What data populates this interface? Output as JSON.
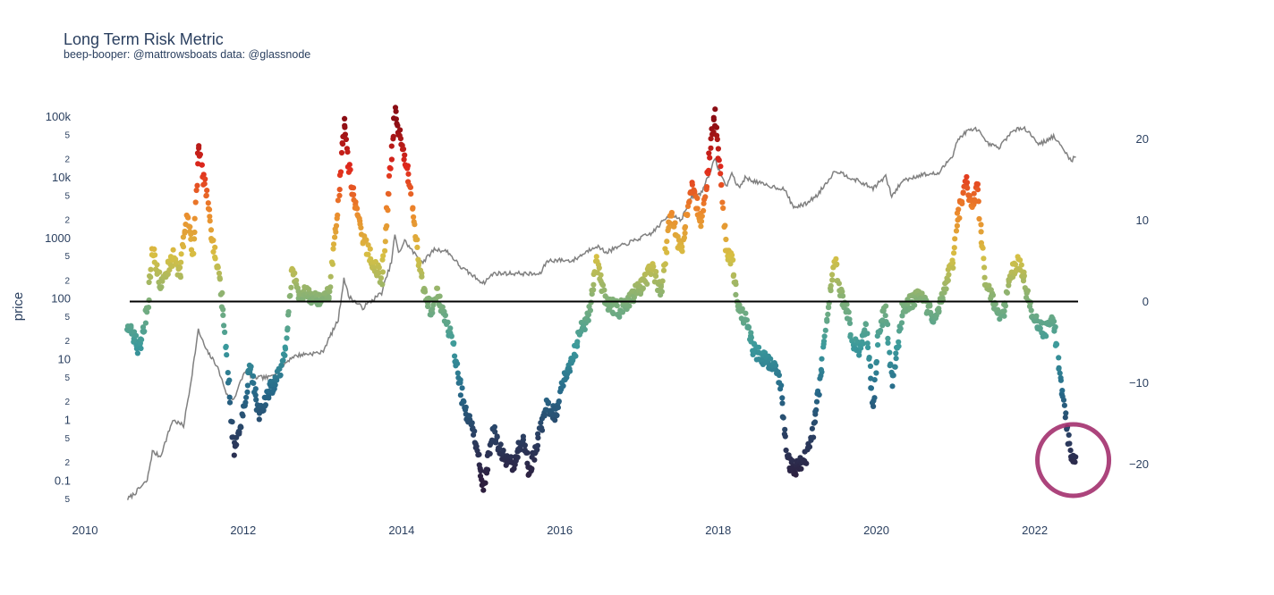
{
  "chart_data": {
    "type": "scatter",
    "title": "Long Term Risk Metric",
    "subtitle": "beep-booper: @mattrowsboats data: @glassnode",
    "ylabel": "price",
    "y_scale": "log",
    "ylim": [
      0.04,
      200000
    ],
    "y2lim": [
      -25,
      25
    ],
    "xlim": [
      "2010-01-01",
      "2023-01-01"
    ],
    "x_ticks": [
      "2010",
      "2012",
      "2014",
      "2016",
      "2018",
      "2020",
      "2022"
    ],
    "y_ticks_major": [
      "100k",
      "10k",
      "1000",
      "100",
      "10",
      "1",
      "0.1"
    ],
    "y_ticks_minor": [
      "5",
      "2"
    ],
    "y2_ticks": [
      "20",
      "10",
      "0",
      "−10",
      "−20"
    ],
    "y2_tick_values": [
      20,
      10,
      0,
      -10,
      -20
    ],
    "reference_line_y2": 0,
    "colorscale": [
      "#2d1e3e",
      "#2a3f62",
      "#276a8a",
      "#3b9a9c",
      "#7fb07a",
      "#d6c044",
      "#ec8a2c",
      "#e0281c",
      "#8b0d14"
    ],
    "highlight": {
      "x": "2022-06-15",
      "y2": -19.5,
      "color": "#a3306e"
    },
    "series": [
      {
        "kind": "line",
        "color": "#808080",
        "points": [
          [
            "2010-07-17",
            0.05
          ],
          [
            "2010-08-15",
            0.06
          ],
          [
            "2010-10-15",
            0.1
          ],
          [
            "2010-11-08",
            0.3
          ],
          [
            "2010-12-15",
            0.25
          ],
          [
            "2011-02-10",
            1.0
          ],
          [
            "2011-04-01",
            0.8
          ],
          [
            "2011-05-01",
            3.5
          ],
          [
            "2011-06-08",
            30
          ],
          [
            "2011-07-15",
            14
          ],
          [
            "2011-09-01",
            8
          ],
          [
            "2011-10-20",
            2.5
          ],
          [
            "2011-11-18",
            2.2
          ],
          [
            "2012-01-10",
            6.5
          ],
          [
            "2012-02-15",
            5
          ],
          [
            "2012-05-01",
            5
          ],
          [
            "2012-08-15",
            11
          ],
          [
            "2012-10-01",
            12
          ],
          [
            "2012-12-31",
            13
          ],
          [
            "2013-03-15",
            45
          ],
          [
            "2013-04-10",
            220
          ],
          [
            "2013-05-01",
            110
          ],
          [
            "2013-07-05",
            70
          ],
          [
            "2013-10-01",
            125
          ],
          [
            "2013-11-15",
            400
          ],
          [
            "2013-12-01",
            1150
          ],
          [
            "2013-12-18",
            550
          ],
          [
            "2014-01-15",
            900
          ],
          [
            "2014-03-01",
            550
          ],
          [
            "2014-04-10",
            400
          ],
          [
            "2014-06-01",
            650
          ],
          [
            "2014-08-01",
            600
          ],
          [
            "2014-10-01",
            330
          ],
          [
            "2015-01-14",
            180
          ],
          [
            "2015-03-01",
            260
          ],
          [
            "2015-07-01",
            260
          ],
          [
            "2015-10-01",
            250
          ],
          [
            "2015-11-04",
            420
          ],
          [
            "2015-12-31",
            430
          ],
          [
            "2016-03-01",
            420
          ],
          [
            "2016-06-16",
            750
          ],
          [
            "2016-08-01",
            580
          ],
          [
            "2016-12-31",
            970
          ],
          [
            "2017-03-01",
            1200
          ],
          [
            "2017-05-25",
            2500
          ],
          [
            "2017-07-15",
            2000
          ],
          [
            "2017-09-01",
            4800
          ],
          [
            "2017-10-15",
            5500
          ],
          [
            "2017-12-17",
            19500
          ],
          [
            "2018-02-06",
            7000
          ],
          [
            "2018-03-05",
            11500
          ],
          [
            "2018-04-06",
            6600
          ],
          [
            "2018-05-05",
            9800
          ],
          [
            "2018-08-01",
            7500
          ],
          [
            "2018-11-01",
            6400
          ],
          [
            "2018-12-15",
            3200
          ],
          [
            "2019-02-01",
            3500
          ],
          [
            "2019-04-02",
            5000
          ],
          [
            "2019-06-26",
            13000
          ],
          [
            "2019-09-01",
            10000
          ],
          [
            "2019-12-17",
            6600
          ],
          [
            "2020-02-13",
            10300
          ],
          [
            "2020-03-12",
            4800
          ],
          [
            "2020-05-01",
            8800
          ],
          [
            "2020-07-27",
            11000
          ],
          [
            "2020-10-15",
            11500
          ],
          [
            "2020-12-20",
            24000
          ],
          [
            "2021-01-08",
            40000
          ],
          [
            "2021-02-20",
            57000
          ],
          [
            "2021-04-13",
            63000
          ],
          [
            "2021-05-19",
            37000
          ],
          [
            "2021-07-20",
            30000
          ],
          [
            "2021-09-06",
            52000
          ],
          [
            "2021-11-10",
            68000
          ],
          [
            "2022-01-23",
            35000
          ],
          [
            "2022-03-29",
            47000
          ],
          [
            "2022-05-12",
            29000
          ],
          [
            "2022-06-18",
            19000
          ],
          [
            "2022-07-10",
            21500
          ]
        ]
      },
      {
        "kind": "markers",
        "axis": "y2",
        "anchors": [
          [
            "2010-07-17",
            -3
          ],
          [
            "2010-09-01",
            -5.5
          ],
          [
            "2010-09-15",
            -5.5
          ],
          [
            "2010-10-15",
            -1
          ],
          [
            "2010-11-08",
            6.5
          ],
          [
            "2010-12-15",
            2
          ],
          [
            "2011-02-15",
            5.5
          ],
          [
            "2011-03-15",
            3
          ],
          [
            "2011-04-15",
            11
          ],
          [
            "2011-05-15",
            6
          ],
          [
            "2011-06-10",
            19
          ],
          [
            "2011-07-15",
            13
          ],
          [
            "2011-08-15",
            7
          ],
          [
            "2011-09-15",
            3
          ],
          [
            "2011-10-15",
            -6
          ],
          [
            "2011-11-18",
            -18.5
          ],
          [
            "2011-12-31",
            -14
          ],
          [
            "2012-02-01",
            -8
          ],
          [
            "2012-03-15",
            -14
          ],
          [
            "2012-05-01",
            -11
          ],
          [
            "2012-06-15",
            -9
          ],
          [
            "2012-07-15",
            -6
          ],
          [
            "2012-08-15",
            4
          ],
          [
            "2012-09-15",
            0.5
          ],
          [
            "2012-10-15",
            1
          ],
          [
            "2012-12-15",
            0
          ],
          [
            "2013-02-01",
            1
          ],
          [
            "2013-03-15",
            12
          ],
          [
            "2013-04-10",
            22
          ],
          [
            "2013-05-15",
            14
          ],
          [
            "2013-07-05",
            8
          ],
          [
            "2013-08-15",
            5
          ],
          [
            "2013-10-01",
            3
          ],
          [
            "2013-11-15",
            18
          ],
          [
            "2013-12-01",
            23
          ],
          [
            "2014-01-15",
            18
          ],
          [
            "2014-02-15",
            13
          ],
          [
            "2014-03-15",
            6
          ],
          [
            "2014-04-10",
            2
          ],
          [
            "2014-05-15",
            -1
          ],
          [
            "2014-06-15",
            1
          ],
          [
            "2014-07-15",
            -2
          ],
          [
            "2014-08-15",
            -4
          ],
          [
            "2014-09-15",
            -8
          ],
          [
            "2014-10-15",
            -13
          ],
          [
            "2014-12-01",
            -16
          ],
          [
            "2015-01-14",
            -23
          ],
          [
            "2015-03-01",
            -16
          ],
          [
            "2015-04-15",
            -19
          ],
          [
            "2015-06-01",
            -20
          ],
          [
            "2015-07-15",
            -17
          ],
          [
            "2015-08-15",
            -21
          ],
          [
            "2015-10-01",
            -16
          ],
          [
            "2015-11-04",
            -13
          ],
          [
            "2015-12-15",
            -14
          ],
          [
            "2016-01-15",
            -10
          ],
          [
            "2016-03-01",
            -7
          ],
          [
            "2016-04-15",
            -3
          ],
          [
            "2016-05-15",
            -2
          ],
          [
            "2016-06-16",
            5
          ],
          [
            "2016-08-01",
            0
          ],
          [
            "2016-10-01",
            -1
          ],
          [
            "2016-12-31",
            1.5
          ],
          [
            "2017-03-01",
            4
          ],
          [
            "2017-04-15",
            1
          ],
          [
            "2017-05-25",
            11
          ],
          [
            "2017-07-15",
            6
          ],
          [
            "2017-09-01",
            14
          ],
          [
            "2017-10-15",
            10
          ],
          [
            "2017-12-17",
            23
          ],
          [
            "2018-01-15",
            15
          ],
          [
            "2018-02-06",
            6
          ],
          [
            "2018-03-05",
            5
          ],
          [
            "2018-04-06",
            -1
          ],
          [
            "2018-05-05",
            -2
          ],
          [
            "2018-06-15",
            -6
          ],
          [
            "2018-08-01",
            -7
          ],
          [
            "2018-09-15",
            -8
          ],
          [
            "2018-10-15",
            -10
          ],
          [
            "2018-11-15",
            -19
          ],
          [
            "2018-12-15",
            -21
          ],
          [
            "2019-01-15",
            -20
          ],
          [
            "2019-02-15",
            -19
          ],
          [
            "2019-03-15",
            -16
          ],
          [
            "2019-04-15",
            -10
          ],
          [
            "2019-05-15",
            -2
          ],
          [
            "2019-06-26",
            5
          ],
          [
            "2019-07-15",
            1
          ],
          [
            "2019-08-15",
            -1
          ],
          [
            "2019-09-15",
            -5
          ],
          [
            "2019-10-15",
            -6
          ],
          [
            "2019-11-15",
            -3
          ],
          [
            "2019-12-17",
            -13
          ],
          [
            "2020-01-15",
            -3
          ],
          [
            "2020-02-13",
            -1
          ],
          [
            "2020-03-12",
            -10
          ],
          [
            "2020-05-01",
            -1
          ],
          [
            "2020-07-27",
            1
          ],
          [
            "2020-09-15",
            -2
          ],
          [
            "2020-10-15",
            -1
          ],
          [
            "2020-12-20",
            5
          ],
          [
            "2021-01-08",
            10
          ],
          [
            "2021-02-20",
            15
          ],
          [
            "2021-03-15",
            12
          ],
          [
            "2021-04-13",
            14
          ],
          [
            "2021-05-19",
            2
          ],
          [
            "2021-06-15",
            1
          ],
          [
            "2021-07-20",
            -2
          ],
          [
            "2021-08-15",
            -1
          ],
          [
            "2021-09-06",
            3
          ],
          [
            "2021-10-15",
            5
          ],
          [
            "2021-11-10",
            3
          ],
          [
            "2021-12-15",
            -1
          ],
          [
            "2022-01-23",
            -3
          ],
          [
            "2022-02-15",
            -4
          ],
          [
            "2022-03-29",
            -2
          ],
          [
            "2022-04-15",
            -6
          ],
          [
            "2022-05-12",
            -12
          ],
          [
            "2022-06-18",
            -19
          ],
          [
            "2022-07-10",
            -19
          ]
        ]
      }
    ]
  }
}
